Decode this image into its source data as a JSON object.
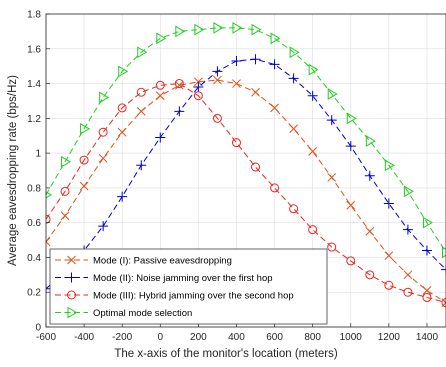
{
  "chart_data": {
    "type": "line",
    "xlabel": "The x-axis of the monitor's location (meters)",
    "ylabel": "Average eavesdropping rate (bps/Hz)",
    "xlim": [
      -600,
      1500
    ],
    "ylim": [
      0,
      1.8
    ],
    "xticks": [
      -600,
      -400,
      -200,
      0,
      200,
      400,
      600,
      800,
      1000,
      1200,
      1400
    ],
    "yticks": [
      0,
      0.2,
      0.4,
      0.6,
      0.8,
      1,
      1.2,
      1.4,
      1.6,
      1.8
    ],
    "grid": true,
    "legend_position": "bottom-left",
    "x": [
      -600,
      -500,
      -400,
      -300,
      -200,
      -100,
      0,
      100,
      200,
      300,
      400,
      500,
      600,
      700,
      800,
      900,
      1000,
      1100,
      1200,
      1300,
      1400,
      1500
    ],
    "series": [
      {
        "name": "Mode (I): Passive eavesdropping",
        "color": "#d95319",
        "marker": "x",
        "values": [
          0.49,
          0.64,
          0.81,
          0.97,
          1.12,
          1.24,
          1.33,
          1.39,
          1.41,
          1.42,
          1.4,
          1.35,
          1.26,
          1.14,
          1.01,
          0.86,
          0.7,
          0.55,
          0.41,
          0.3,
          0.21,
          0.14
        ]
      },
      {
        "name": "Mode (II): Noise jamming over the first hop",
        "color": "#0000cc",
        "marker": "+",
        "values": [
          0.22,
          0.32,
          0.44,
          0.58,
          0.75,
          0.93,
          1.09,
          1.24,
          1.38,
          1.47,
          1.53,
          1.54,
          1.51,
          1.43,
          1.33,
          1.19,
          1.04,
          0.87,
          0.71,
          0.56,
          0.44,
          0.33
        ]
      },
      {
        "name": "Mode (III): Hybrid jamming over the second hop",
        "color": "#e8261b",
        "marker": "o",
        "values": [
          0.62,
          0.78,
          0.96,
          1.12,
          1.26,
          1.35,
          1.39,
          1.4,
          1.33,
          1.2,
          1.06,
          0.92,
          0.8,
          0.68,
          0.56,
          0.46,
          0.38,
          0.3,
          0.24,
          0.2,
          0.17,
          0.14
        ]
      },
      {
        "name": "Optimal mode selection",
        "color": "#22cc22",
        "marker": "triangle-right",
        "values": [
          0.76,
          0.95,
          1.14,
          1.32,
          1.47,
          1.58,
          1.66,
          1.7,
          1.71,
          1.72,
          1.72,
          1.71,
          1.66,
          1.58,
          1.48,
          1.34,
          1.2,
          1.07,
          0.93,
          0.78,
          0.6,
          0.43
        ]
      }
    ]
  }
}
